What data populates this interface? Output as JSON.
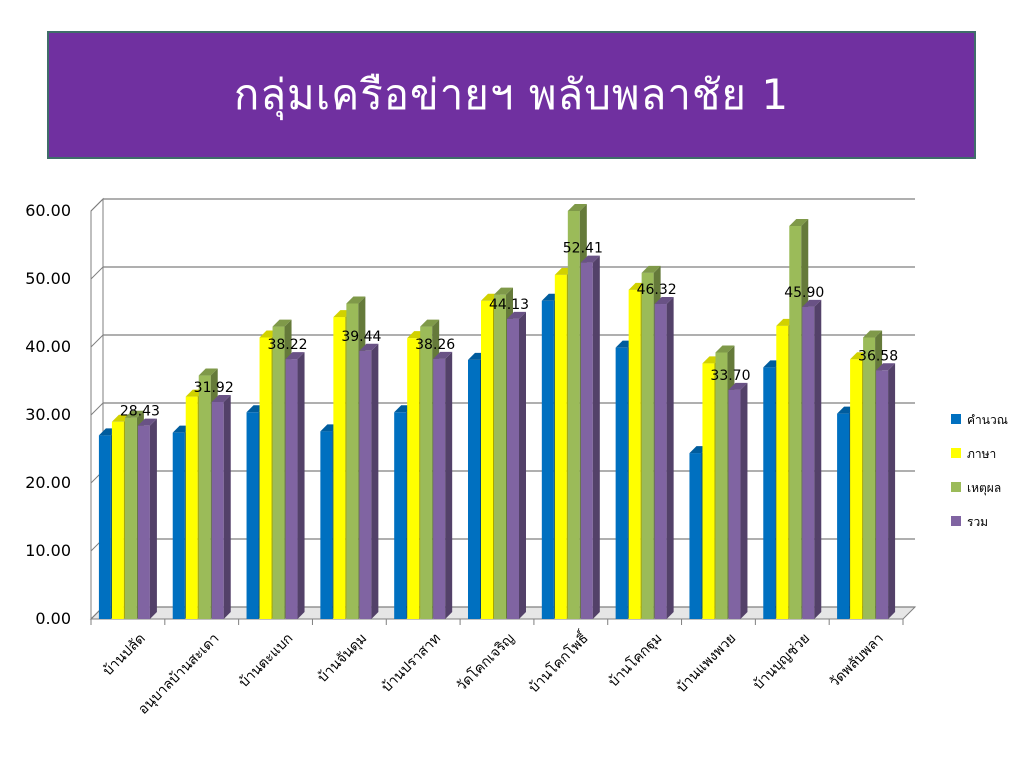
{
  "slide": {
    "title": "กลุ่มเครือข่ายฯ พลับพลาชัย 1"
  },
  "chart_data": {
    "type": "bar",
    "ylim": [
      0,
      60
    ],
    "y_ticks": [
      "0.00",
      "10.00",
      "20.00",
      "30.00",
      "40.00",
      "50.00",
      "60.00"
    ],
    "grid": true,
    "legend_position": "right",
    "categories": [
      "บ้านปลัด",
      "อนุบาลบ้านสะเดา",
      "บ้านตะแบก",
      "บ้านจันดุม",
      "บ้านปราสาท",
      "วัดโคกเจริญ",
      "บ้านโคกโพธิ์",
      "บ้านโคกฐุม",
      "บ้านแพงพวย",
      "บ้านบุญช่วย",
      "วัดพลับพลา"
    ],
    "series": [
      {
        "name": "คำนวณ",
        "color": "#0070c0",
        "values": [
          27.0,
          27.4,
          30.4,
          27.6,
          30.4,
          38.1,
          46.8,
          39.9,
          24.4,
          37.0,
          30.2
        ]
      },
      {
        "name": "ภาษา",
        "color": "#ffff00",
        "values": [
          29.0,
          32.7,
          41.4,
          44.4,
          41.3,
          46.8,
          50.6,
          48.4,
          37.6,
          43.1,
          38.2
        ]
      },
      {
        "name": "เหตุผล",
        "color": "#9bbb59",
        "values": [
          29.6,
          35.8,
          43.0,
          46.4,
          43.0,
          47.7,
          60.0,
          50.9,
          39.2,
          57.8,
          41.4
        ]
      },
      {
        "name": "รวม",
        "color": "#8064a2",
        "values": [
          28.43,
          31.92,
          38.22,
          39.44,
          38.26,
          44.13,
          52.41,
          46.32,
          33.7,
          45.9,
          36.58
        ]
      }
    ],
    "data_labels": [
      "28.43",
      "31.92",
      "38.22",
      "39.44",
      "38.26",
      "44.13",
      "52.41",
      "46.32",
      "33.70",
      "45.90",
      "36.58"
    ]
  }
}
